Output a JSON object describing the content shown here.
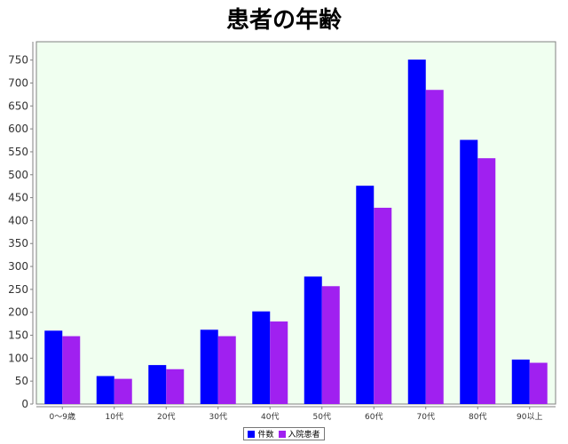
{
  "chart_data": {
    "type": "bar",
    "title": "患者の年齢",
    "xlabel": "",
    "ylabel": "",
    "ylim": [
      0,
      790
    ],
    "yticks": [
      0,
      50,
      100,
      150,
      200,
      250,
      300,
      350,
      400,
      450,
      500,
      550,
      600,
      650,
      700,
      750
    ],
    "grid": false,
    "legend_position": "bottom",
    "categories": [
      "0～9歳",
      "10代",
      "20代",
      "30代",
      "40代",
      "50代",
      "60代",
      "70代",
      "80代",
      "90以上"
    ],
    "series": [
      {
        "name": "件数",
        "color": "#0000ff",
        "values": [
          160,
          61,
          85,
          162,
          202,
          278,
          476,
          751,
          576,
          97
        ]
      },
      {
        "name": "入院患者",
        "color": "#a020f0",
        "values": [
          148,
          55,
          76,
          148,
          180,
          257,
          428,
          685,
          536,
          90
        ]
      }
    ],
    "plot_background": "#f0fff0"
  }
}
